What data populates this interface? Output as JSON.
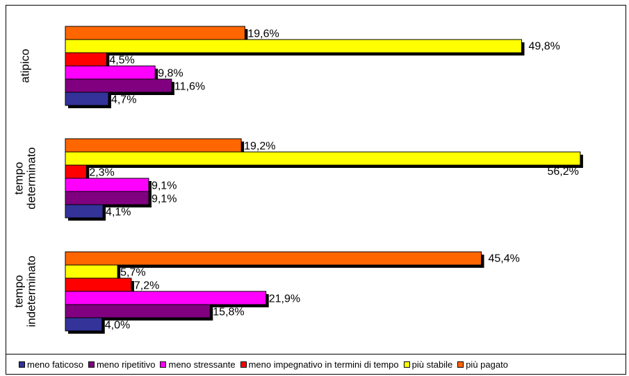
{
  "chart_data": {
    "type": "bar",
    "orientation": "horizontal",
    "grouped": true,
    "title": "",
    "xlabel": "",
    "ylabel": "",
    "xlim": [
      0,
      60
    ],
    "grid": false,
    "legend_position": "bottom",
    "groups": [
      "atipico",
      "tempo determinato",
      "tempo indeterminato"
    ],
    "group_label_lines": [
      [
        "atipico"
      ],
      [
        "tempo",
        "determinato"
      ],
      [
        "tempo",
        "indeterminato"
      ]
    ],
    "series": [
      {
        "name": "meno faticoso",
        "color": "#333399",
        "values": [
          4.7,
          4.1,
          4.0
        ],
        "labels": [
          "4,7%",
          "4,1%",
          "4,0%"
        ]
      },
      {
        "name": "meno ripetitivo",
        "color": "#800080",
        "values": [
          11.6,
          9.1,
          15.8
        ],
        "labels": [
          "11,6%",
          "9,1%",
          "15,8%"
        ]
      },
      {
        "name": "meno stressante",
        "color": "#ff00ff",
        "values": [
          9.8,
          9.1,
          21.9
        ],
        "labels": [
          "9,8%",
          "9,1%",
          "21,9%"
        ]
      },
      {
        "name": "meno impegnativo in termini di tempo",
        "color": "#ff0000",
        "values": [
          4.5,
          2.3,
          7.2
        ],
        "labels": [
          "4,5%",
          "2,3%",
          "7,2%"
        ]
      },
      {
        "name": "più stabile",
        "color": "#ffff00",
        "values": [
          49.8,
          56.2,
          5.7
        ],
        "labels": [
          "49,8%",
          "56,2%",
          "5,7%"
        ]
      },
      {
        "name": "più pagato",
        "color": "#ff6600",
        "values": [
          19.6,
          19.2,
          45.4
        ],
        "labels": [
          "19,6%",
          "19,2%",
          "45,4%"
        ]
      }
    ]
  }
}
